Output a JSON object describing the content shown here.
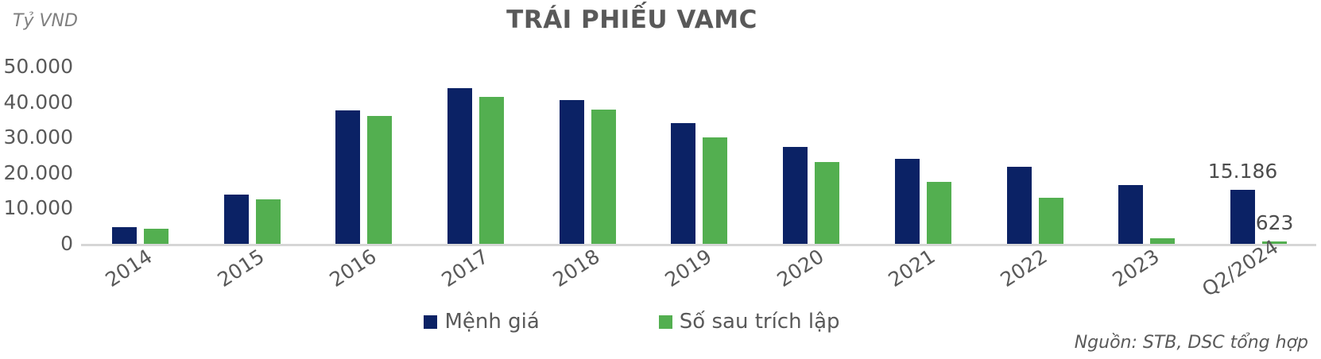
{
  "header": {
    "title": "TRÁI PHIẾU VAMC",
    "unit_label": "Tỷ VND"
  },
  "source": "Nguồn: STB, DSC tổng hợp",
  "colors": {
    "navy": "#0B2265",
    "green": "#53AF50",
    "title_text": "#595959",
    "axis_text": "#595959",
    "baseline": "#D6D6D6",
    "data_label_text": "#4D4D4D"
  },
  "legend": {
    "items": [
      {
        "name": "Mệnh giá",
        "color": "#0B2265"
      },
      {
        "name": "Số sau trích lập",
        "color": "#53AF50"
      }
    ]
  },
  "chart_data": {
    "type": "bar",
    "title": "TRÁI PHIẾU VAMC",
    "xlabel": "",
    "ylabel": "Tỷ VND",
    "ylim": [
      0,
      50000
    ],
    "grid": false,
    "legend_position": "bottom",
    "y_ticks": [
      "50.000",
      "40.000",
      "30.000",
      "20.000",
      "10.000",
      "0"
    ],
    "categories": [
      "2014",
      "2015",
      "2016",
      "2017",
      "2018",
      "2019",
      "2020",
      "2021",
      "2022",
      "2023",
      "Q2/2024"
    ],
    "series": [
      {
        "name": "Mệnh giá",
        "color": "#0B2265",
        "values": [
          4700,
          14000,
          37600,
          43900,
          40600,
          34000,
          27400,
          24000,
          21700,
          16500,
          15186
        ]
      },
      {
        "name": "Số sau trích lập",
        "color": "#53AF50",
        "values": [
          4300,
          12500,
          36000,
          41500,
          38000,
          30000,
          23000,
          17600,
          12900,
          1600,
          623
        ]
      }
    ],
    "data_labels": [
      {
        "category": "Q2/2024",
        "series": "Mệnh giá",
        "text": "15.186"
      },
      {
        "category": "Q2/2024",
        "series": "Số sau trích lập",
        "text": "623"
      }
    ]
  }
}
